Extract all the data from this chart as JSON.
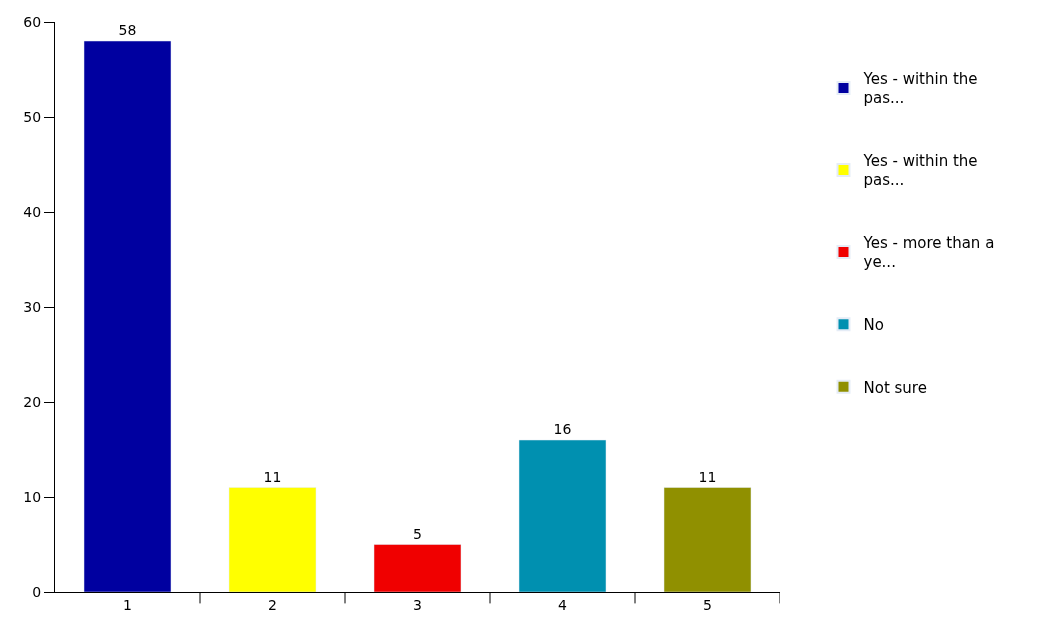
{
  "chart_data": {
    "type": "bar",
    "categories": [
      "1",
      "2",
      "3",
      "4",
      "5"
    ],
    "series": [
      {
        "name": "Yes - within the pas...",
        "color": "#0000a0",
        "values": [
          58,
          null,
          null,
          null,
          null
        ]
      },
      {
        "name": "Yes - within the pas...",
        "color": "#ffff00",
        "values": [
          null,
          11,
          null,
          null,
          null
        ]
      },
      {
        "name": "Yes - more than a ye...",
        "color": "#f00000",
        "values": [
          null,
          null,
          5,
          null,
          null
        ]
      },
      {
        "name": "No",
        "color": "#0090b0",
        "values": [
          null,
          null,
          null,
          16,
          null
        ]
      },
      {
        "name": "Not sure",
        "color": "#909000",
        "values": [
          null,
          null,
          null,
          null,
          11
        ]
      }
    ],
    "ylim": [
      0,
      60
    ],
    "yticks": [
      0,
      10,
      20,
      30,
      40,
      50,
      60
    ],
    "data_labels": true,
    "legend": "right"
  }
}
